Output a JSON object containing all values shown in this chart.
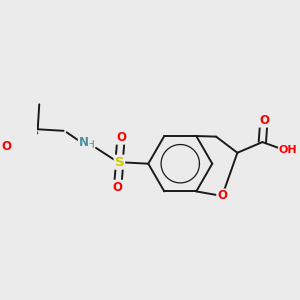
{
  "bg_color": "#ebebeb",
  "bond_color": "#1a1a1a",
  "atom_colors": {
    "O": "#ff0000",
    "N": "#4a8fa0",
    "S": "#cccc00",
    "C": "#1a1a1a"
  },
  "figsize": [
    3.0,
    3.0
  ],
  "dpi": 100
}
